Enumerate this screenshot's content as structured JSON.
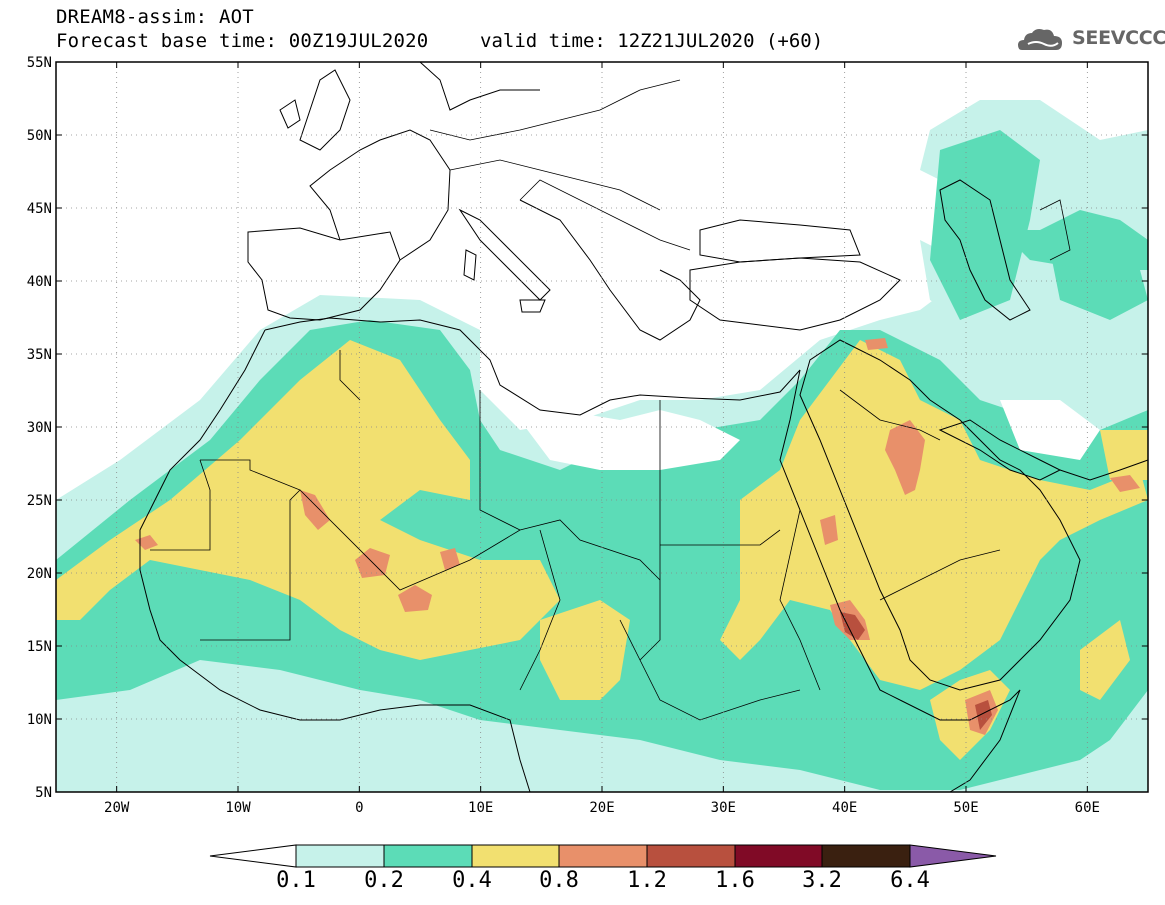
{
  "header": {
    "title_line1": "DREAM8-assim: AOT",
    "title_line2": "Forecast base time: 00Z19JUL2020",
    "valid_time": "valid time: 12Z21JUL2020 (+60)",
    "logo_text": "SEEVCCC",
    "logo_icon": "cloud-logo-icon"
  },
  "map": {
    "lat_labels": [
      "55N",
      "50N",
      "45N",
      "40N",
      "35N",
      "30N",
      "25N",
      "20N",
      "15N",
      "10N",
      "5N"
    ],
    "lon_labels": [
      "20W",
      "10W",
      "0",
      "10E",
      "20E",
      "30E",
      "40E",
      "50E",
      "60E"
    ],
    "lat_range": [
      5,
      55
    ],
    "lon_range": [
      -25,
      65
    ],
    "grid": true
  },
  "colorbar": {
    "labels": [
      "0.1",
      "0.2",
      "0.4",
      "0.8",
      "1.2",
      "1.6",
      "3.2",
      "6.4"
    ],
    "colors": [
      "#ffffff",
      "#c6f2ea",
      "#5cdcb7",
      "#f2e070",
      "#e8906a",
      "#b8503e",
      "#800a26",
      "#3a2010",
      "#8a5aa8"
    ]
  },
  "palette": {
    "level_0_1": "#c6f2ea",
    "level_0_2": "#5cdcb7",
    "level_0_4": "#f2e070",
    "level_0_8": "#e8906a",
    "level_1_2": "#b8503e",
    "border": "#000000"
  }
}
